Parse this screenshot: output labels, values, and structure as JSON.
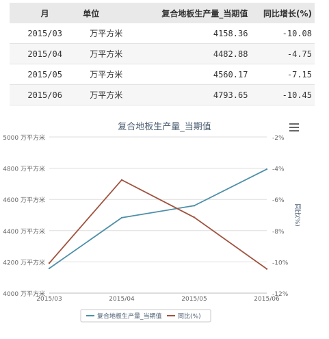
{
  "table": {
    "headers": [
      "月",
      "单位",
      "复合地板生产量_当期值",
      "同比增长(%)"
    ],
    "rows": [
      {
        "month": "2015/03",
        "unit": "万平方米",
        "value": "4158.36",
        "change": "-10.08"
      },
      {
        "month": "2015/04",
        "unit": "万平方米",
        "value": "4482.88",
        "change": "-4.75"
      },
      {
        "month": "2015/05",
        "unit": "万平方米",
        "value": "4560.17",
        "change": "-7.15"
      },
      {
        "month": "2015/06",
        "unit": "万平方米",
        "value": "4793.65",
        "change": "-10.45"
      }
    ]
  },
  "chart_data": {
    "type": "line",
    "title": "复合地板生产量_当期值",
    "categories": [
      "2015/03",
      "2015/04",
      "2015/05",
      "2015/06"
    ],
    "series": [
      {
        "name": "复合地板生产量_当期值",
        "axis": "left",
        "color": "#4d8fa8",
        "values": [
          4158.36,
          4482.88,
          4560.17,
          4793.65
        ]
      },
      {
        "name": "同比(%)",
        "axis": "right",
        "color": "#a0523e",
        "values": [
          -10.08,
          -4.75,
          -7.15,
          -10.45
        ]
      }
    ],
    "y_left": {
      "ticks": [
        4000,
        4200,
        4400,
        4600,
        4800,
        5000
      ],
      "tick_labels": [
        "4000 万平方米",
        "4200 万平方米",
        "4400 万平方米",
        "4600 万平方米",
        "4800 万平方米",
        "5000 万平方米"
      ],
      "range": [
        4000,
        5000
      ]
    },
    "y_right": {
      "label": "同比(%)",
      "ticks": [
        -12,
        -10,
        -8,
        -6,
        -4,
        -2
      ],
      "tick_labels": [
        "-12%",
        "-10%",
        "-8%",
        "-6%",
        "-4%",
        "-2%"
      ],
      "range": [
        -12,
        -2
      ]
    },
    "grid": true,
    "legend_position": "bottom"
  }
}
